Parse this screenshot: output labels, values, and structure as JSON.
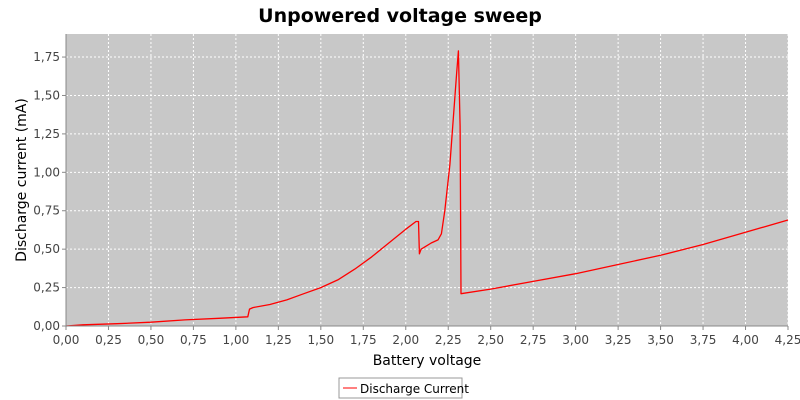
{
  "chart_data": {
    "type": "line",
    "title": "Unpowered voltage sweep",
    "xlabel": "Battery voltage",
    "ylabel": "Discharge current (mA)",
    "xlim": [
      0,
      4.25
    ],
    "ylim": [
      0,
      1.9
    ],
    "x_ticks": [
      "0,00",
      "0,25",
      "0,50",
      "0,75",
      "1,00",
      "1,25",
      "1,50",
      "1,75",
      "2,00",
      "2,25",
      "2,50",
      "2,75",
      "3,00",
      "3,25",
      "3,50",
      "3,75",
      "4,00",
      "4,25"
    ],
    "y_ticks": [
      "0,00",
      "0,25",
      "0,50",
      "0,75",
      "1,00",
      "1,25",
      "1,50",
      "1,75"
    ],
    "grid": true,
    "legend": "bottom-center",
    "plot_background": "#c8c8c8",
    "series": [
      {
        "name": "Discharge Current",
        "color": "#ff0000",
        "x": [
          0.0,
          0.1,
          0.3,
          0.5,
          0.7,
          0.9,
          1.07,
          1.08,
          1.1,
          1.2,
          1.3,
          1.4,
          1.5,
          1.6,
          1.7,
          1.8,
          1.9,
          2.0,
          2.06,
          2.075,
          2.08,
          2.09,
          2.12,
          2.15,
          2.19,
          2.21,
          2.23,
          2.26,
          2.28,
          2.3,
          2.31,
          2.32,
          2.325,
          2.5,
          2.75,
          3.0,
          3.25,
          3.5,
          3.75,
          4.0,
          4.25
        ],
        "y": [
          0.0,
          0.008,
          0.015,
          0.025,
          0.04,
          0.05,
          0.06,
          0.11,
          0.12,
          0.14,
          0.17,
          0.21,
          0.25,
          0.3,
          0.37,
          0.45,
          0.54,
          0.63,
          0.68,
          0.68,
          0.47,
          0.5,
          0.52,
          0.54,
          0.56,
          0.6,
          0.75,
          1.05,
          1.35,
          1.65,
          1.79,
          1.3,
          0.21,
          0.24,
          0.29,
          0.34,
          0.4,
          0.46,
          0.53,
          0.61,
          0.69
        ]
      }
    ]
  }
}
